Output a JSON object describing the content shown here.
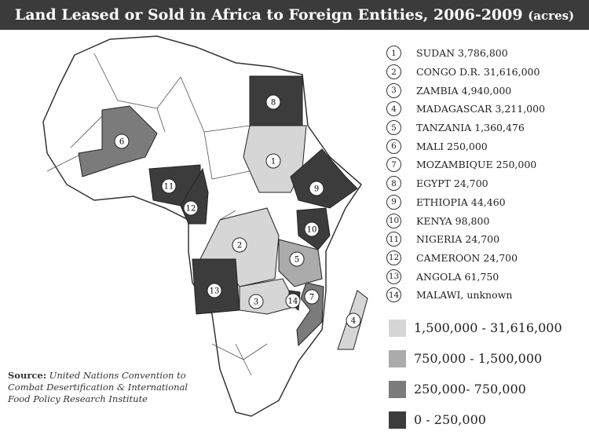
{
  "title": "Land Leased or Sold in Africa to Foreign Entities, 2006-2009",
  "title_unit": "(acres)",
  "colors": {
    "light": "#d6d6d6",
    "medium": "#ababab",
    "darker": "#7b7b7b",
    "dark": "#3c3c3c"
  },
  "countries": [
    {
      "num": "1",
      "label": "SUDAN 3,786,800",
      "tier": "light"
    },
    {
      "num": "2",
      "label": "CONGO D.R. 31,616,000",
      "tier": "light"
    },
    {
      "num": "3",
      "label": "ZAMBIA 4,940,000",
      "tier": "light"
    },
    {
      "num": "4",
      "label": "MADAGASCAR 3,211,000",
      "tier": "light"
    },
    {
      "num": "5",
      "label": "TANZANIA 1,360,476",
      "tier": "medium"
    },
    {
      "num": "6",
      "label": "MALI 250,000",
      "tier": "darker"
    },
    {
      "num": "7",
      "label": "MOZAMBIQUE 250,000",
      "tier": "darker"
    },
    {
      "num": "8",
      "label": "EGYPT 24,700",
      "tier": "dark"
    },
    {
      "num": "9",
      "label": "ETHIOPIA 44,460",
      "tier": "dark"
    },
    {
      "num": "10",
      "label": "KENYA 98,800",
      "tier": "dark"
    },
    {
      "num": "11",
      "label": "NIGERIA 24,700",
      "tier": "dark"
    },
    {
      "num": "12",
      "label": "CAMEROON 24,700",
      "tier": "dark"
    },
    {
      "num": "13",
      "label": "ANGOLA 61,750",
      "tier": "dark"
    },
    {
      "num": "14",
      "label": "MALAWI, unknown",
      "tier": "dark"
    }
  ],
  "legend": [
    {
      "label": "1,500,000 - 31,616,000",
      "tier": "light"
    },
    {
      "label": "750,000 - 1,500,000",
      "tier": "medium"
    },
    {
      "label": "250,000- 750,000",
      "tier": "darker"
    },
    {
      "label": "0 - 250,000",
      "tier": "dark"
    }
  ],
  "source": {
    "label": "Source:",
    "text": "United Nations Convention to Combat Desertification & International Food Policy Research Institute"
  }
}
